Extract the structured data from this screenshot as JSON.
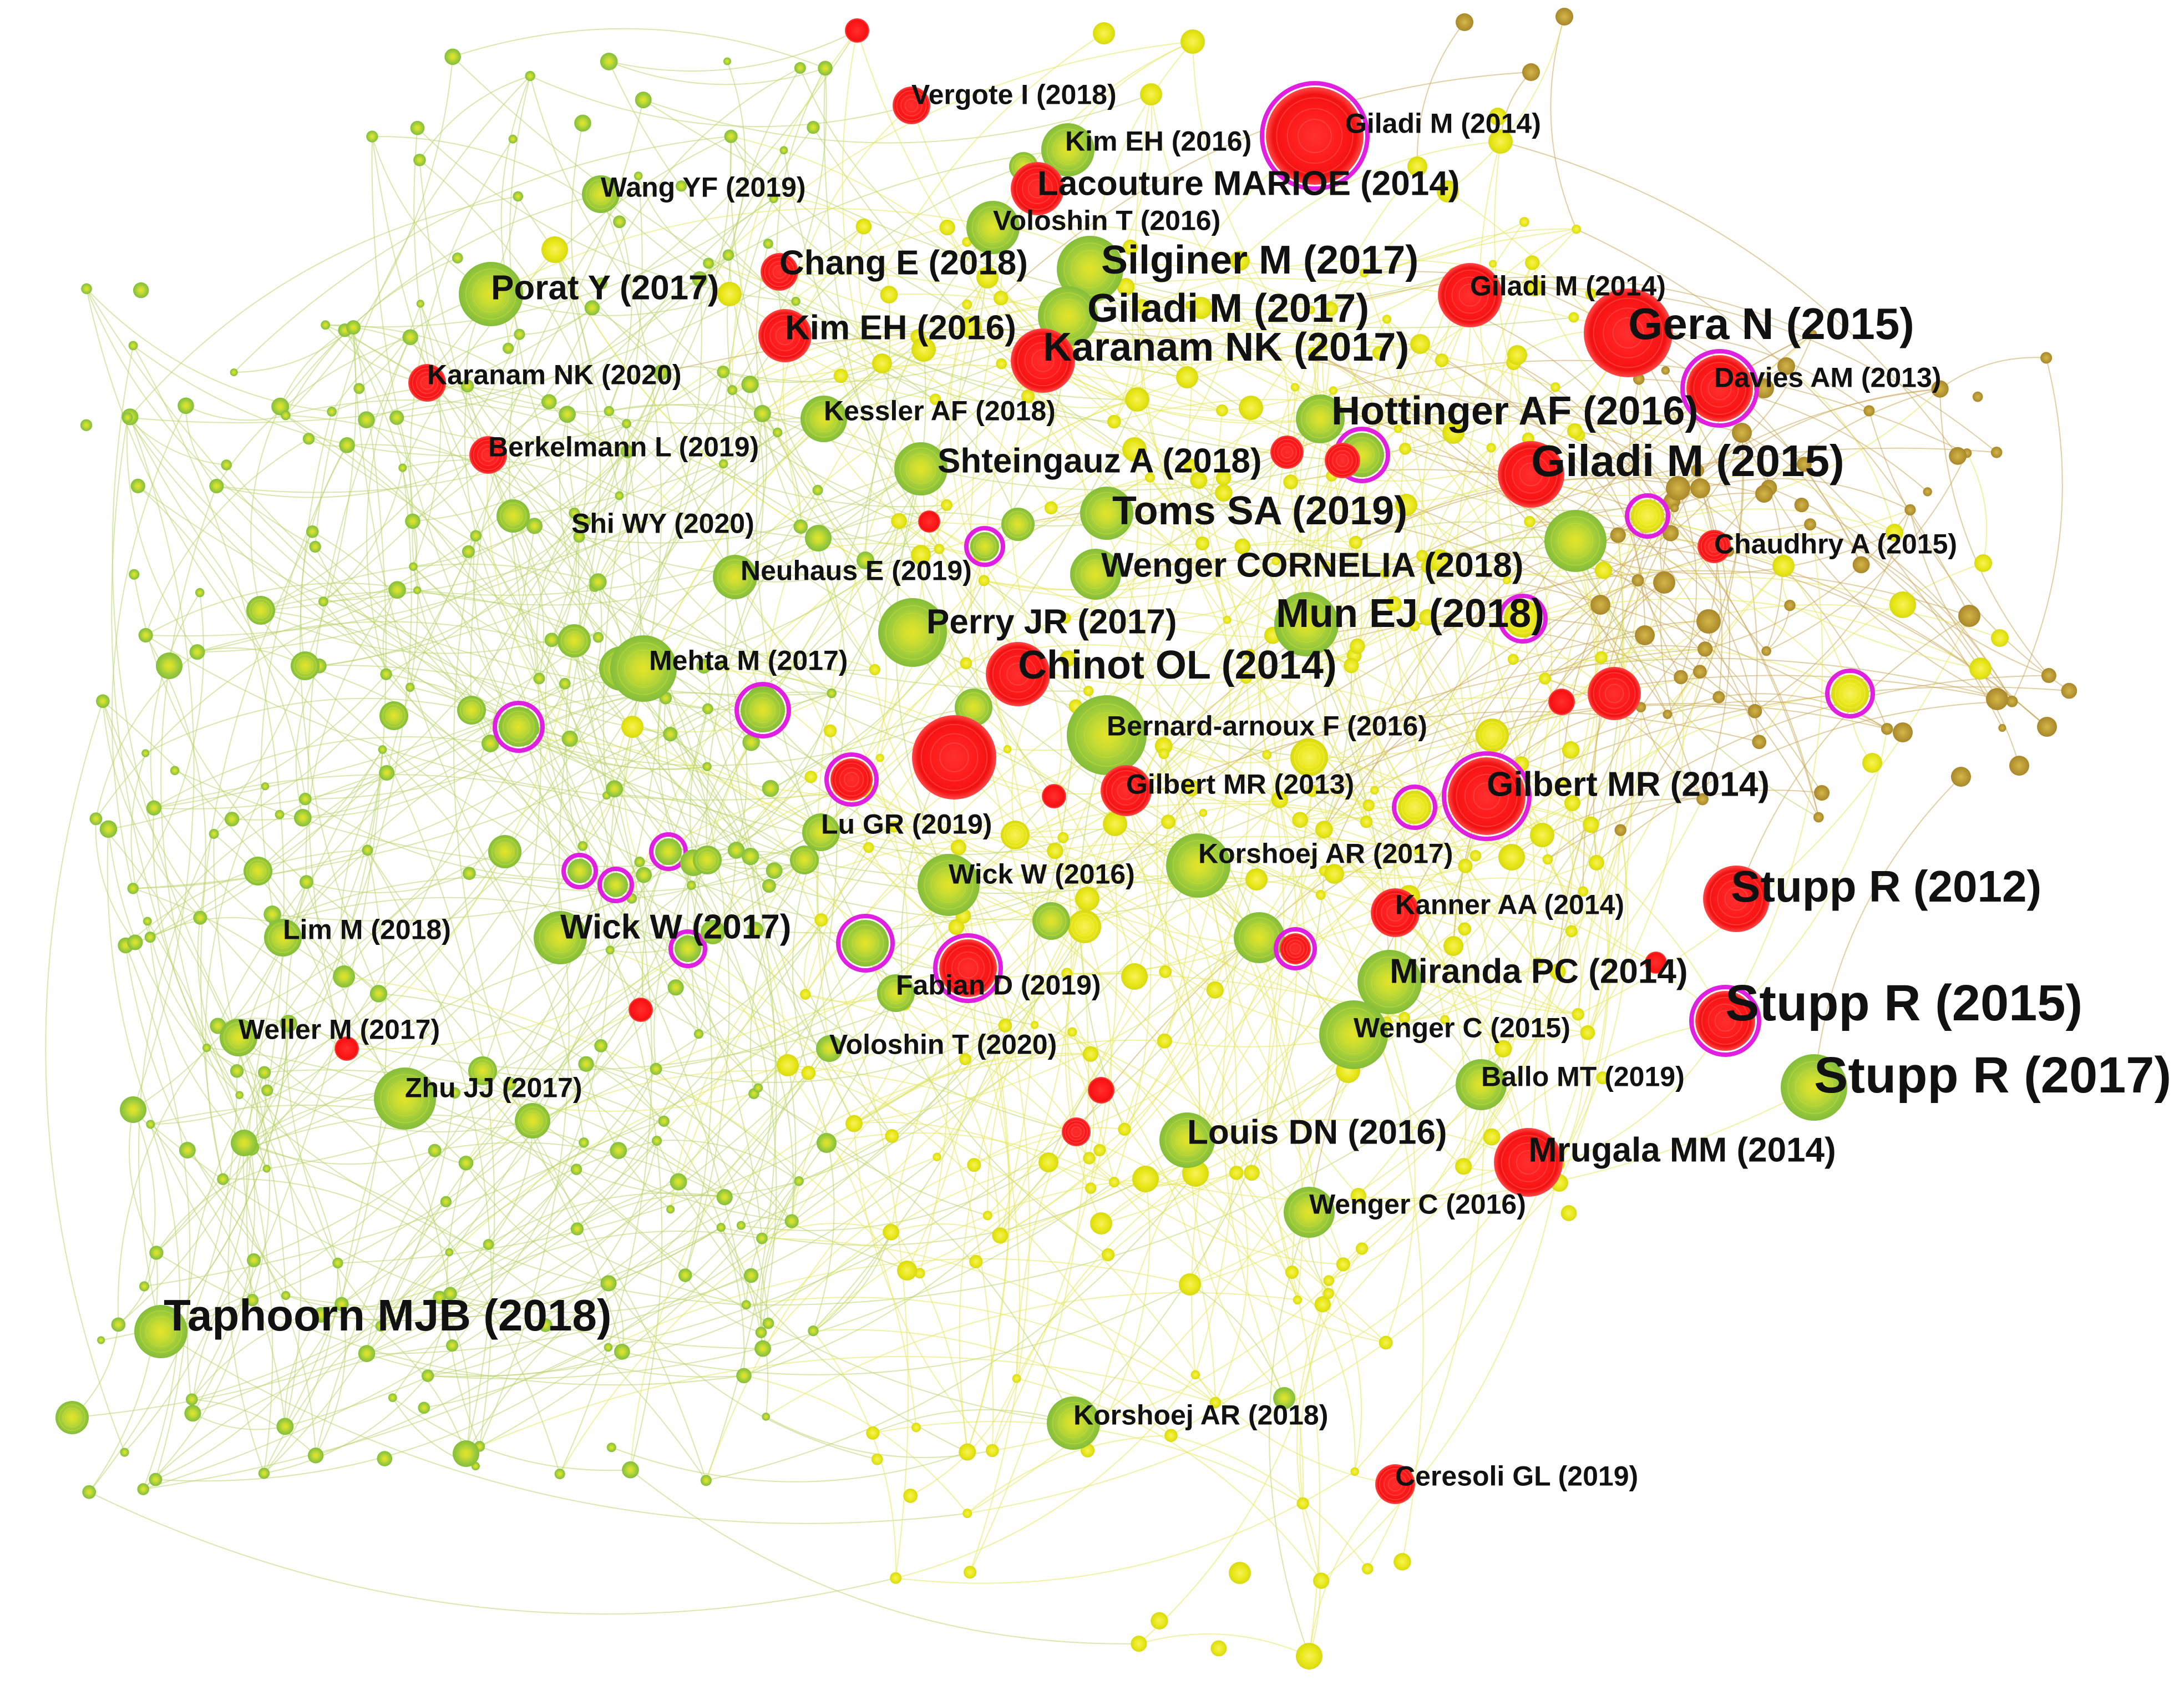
{
  "colors": {
    "red": "#ff1a1a",
    "red_ring": "#ff5a5a",
    "green": "#8fc23a",
    "green_core": "#c8dc32",
    "yellow": "#e8e81a",
    "yellow_core": "#f5f04a",
    "brown": "#b8962e",
    "magenta_ring": "#e020e0",
    "edge_yellow": "#e6e65a",
    "edge_green": "#b9d46e",
    "edge_brown": "#c9a85a",
    "label": "#111111"
  },
  "labels": [
    {
      "text": "Vergote I (2018)",
      "tier": "s"
    },
    {
      "text": "Giladi M (2014)",
      "tier": "s"
    },
    {
      "text": "Kim EH (2016)",
      "tier": "s"
    },
    {
      "text": "Lacouture MARIOE (2014)",
      "tier": "m"
    },
    {
      "text": "Wang YF (2019)",
      "tier": "s"
    },
    {
      "text": "Voloshin T (2016)",
      "tier": "s"
    },
    {
      "text": "Chang E (2018)",
      "tier": "m"
    },
    {
      "text": "Silginer M (2017)",
      "tier": "l"
    },
    {
      "text": "Porat Y (2017)",
      "tier": "m"
    },
    {
      "text": "Giladi M (2014)",
      "tier": "s"
    },
    {
      "text": "Giladi M (2017)",
      "tier": "l"
    },
    {
      "text": "Gera N (2015)",
      "tier": "xl"
    },
    {
      "text": "Kim EH (2016)",
      "tier": "m"
    },
    {
      "text": "Karanam NK (2017)",
      "tier": "l"
    },
    {
      "text": "Karanam NK (2020)",
      "tier": "s"
    },
    {
      "text": "Davies AM (2013)",
      "tier": "s"
    },
    {
      "text": "Kessler AF (2018)",
      "tier": "s"
    },
    {
      "text": "Hottinger AF (2016)",
      "tier": "l"
    },
    {
      "text": "Berkelmann L (2019)",
      "tier": "s"
    },
    {
      "text": "Shteingauz A (2018)",
      "tier": "m"
    },
    {
      "text": "Giladi M (2015)",
      "tier": "xl"
    },
    {
      "text": "Toms SA (2019)",
      "tier": "l"
    },
    {
      "text": "Shi WY (2020)",
      "tier": "s"
    },
    {
      "text": "Chaudhry A (2015)",
      "tier": "s"
    },
    {
      "text": "Neuhaus E (2019)",
      "tier": "s"
    },
    {
      "text": "Wenger CORNELIA (2018)",
      "tier": "m"
    },
    {
      "text": "Perry JR (2017)",
      "tier": "m"
    },
    {
      "text": "Mun EJ (2018)",
      "tier": "l"
    },
    {
      "text": "Mehta M (2017)",
      "tier": "s"
    },
    {
      "text": "Chinot OL (2014)",
      "tier": "l"
    },
    {
      "text": "Bernard-arnoux F (2016)",
      "tier": "s"
    },
    {
      "text": "Gilbert MR (2013)",
      "tier": "s"
    },
    {
      "text": "Gilbert MR (2014)",
      "tier": "m"
    },
    {
      "text": "Lu GR (2019)",
      "tier": "s"
    },
    {
      "text": "Korshoej AR (2017)",
      "tier": "s"
    },
    {
      "text": "Wick W (2016)",
      "tier": "s"
    },
    {
      "text": "Stupp R (2012)",
      "tier": "xl"
    },
    {
      "text": "Kanner AA (2014)",
      "tier": "s"
    },
    {
      "text": "Lim M (2018)",
      "tier": "s"
    },
    {
      "text": "Wick W (2017)",
      "tier": "m"
    },
    {
      "text": "Miranda PC (2014)",
      "tier": "m"
    },
    {
      "text": "Fabian D (2019)",
      "tier": "s"
    },
    {
      "text": "Stupp R (2015)",
      "tier": "xxl"
    },
    {
      "text": "Weller M (2017)",
      "tier": "s"
    },
    {
      "text": "Wenger C (2015)",
      "tier": "s"
    },
    {
      "text": "Voloshin T (2020)",
      "tier": "s"
    },
    {
      "text": "Zhu JJ (2017)",
      "tier": "s"
    },
    {
      "text": "Ballo MT (2019)",
      "tier": "s"
    },
    {
      "text": "Stupp R (2017)",
      "tier": "xxl"
    },
    {
      "text": "Louis DN (2016)",
      "tier": "m"
    },
    {
      "text": "Mrugala MM (2014)",
      "tier": "m"
    },
    {
      "text": "Wenger C (2016)",
      "tier": "s"
    },
    {
      "text": "Taphoorn MJB (2018)",
      "tier": "xl"
    },
    {
      "text": "Korshoej AR (2018)",
      "tier": "s"
    },
    {
      "text": "Ceresoli GL (2019)",
      "tier": "s"
    }
  ]
}
